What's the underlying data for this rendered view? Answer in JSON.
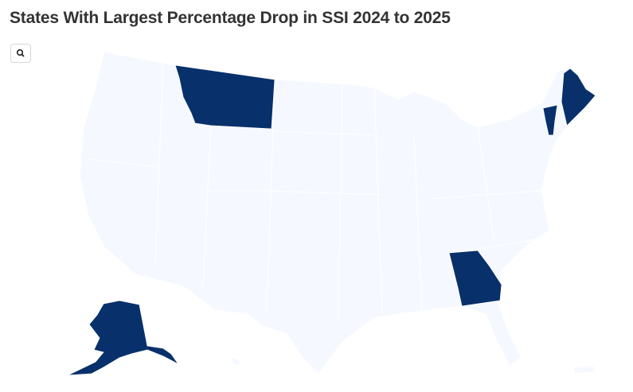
{
  "header": {
    "title": "States With Largest Percentage Drop in SSI 2024 to 2025"
  }
}
